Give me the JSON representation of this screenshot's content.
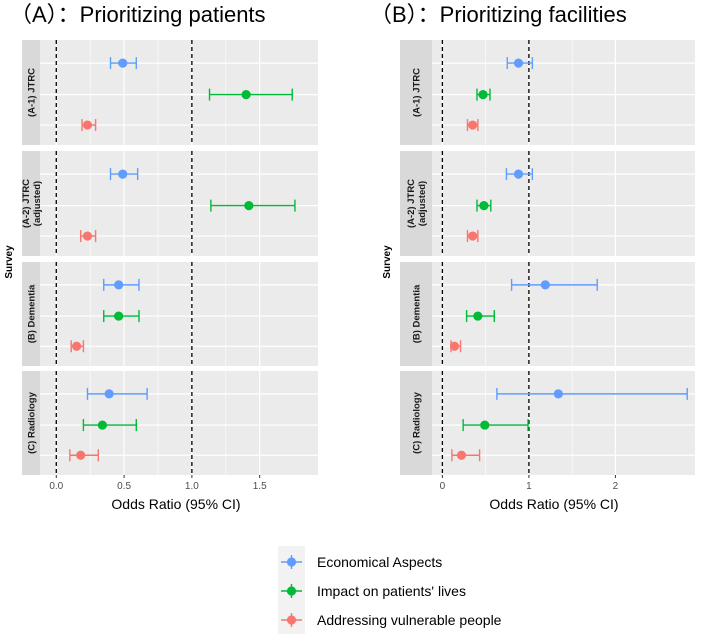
{
  "panels": [
    {
      "id": "A",
      "title": "（A）：Prioritizing patients"
    },
    {
      "id": "B",
      "title": "（B）：Prioritizing facilities"
    }
  ],
  "colors": {
    "economical": "#619CFF",
    "impact": "#00BA38",
    "vulnerable": "#F8766D",
    "panel_bg": "#EBEBEB",
    "strip_bg": "#D9D9D9",
    "grid": "#FFFFFF"
  },
  "legend": {
    "items": [
      {
        "key": "economical",
        "label": "Economical Aspects"
      },
      {
        "key": "impact",
        "label": "Impact on patients' lives"
      },
      {
        "key": "vulnerable",
        "label": "Addressing vulnerable people"
      }
    ]
  },
  "chart_data": [
    {
      "type": "scatter",
      "subtype": "forest-plot",
      "title": "（A）：Prioritizing patients",
      "xlabel": "Odds Ratio (95% CI)",
      "ylabel": "Survey",
      "xlim": [
        -0.12,
        1.93
      ],
      "xticks": [
        0.0,
        0.5,
        1.0,
        1.5
      ],
      "xtick_labels": [
        "0.0",
        "0.5",
        "1.0",
        "1.5"
      ],
      "reference_lines": [
        0,
        1
      ],
      "facets": [
        {
          "label": "(A-1) JTRC",
          "rows": [
            {
              "series": "economical",
              "or": 0.49,
              "lo": 0.4,
              "hi": 0.59
            },
            {
              "series": "impact",
              "or": 1.4,
              "lo": 1.13,
              "hi": 1.74
            },
            {
              "series": "vulnerable",
              "or": 0.23,
              "lo": 0.19,
              "hi": 0.29
            }
          ]
        },
        {
          "label": "(A-2) JTRC (adjusted)",
          "rows": [
            {
              "series": "economical",
              "or": 0.49,
              "lo": 0.4,
              "hi": 0.6
            },
            {
              "series": "impact",
              "or": 1.42,
              "lo": 1.14,
              "hi": 1.76
            },
            {
              "series": "vulnerable",
              "or": 0.23,
              "lo": 0.18,
              "hi": 0.29
            }
          ]
        },
        {
          "label": "(B) Dementia",
          "rows": [
            {
              "series": "economical",
              "or": 0.46,
              "lo": 0.35,
              "hi": 0.61
            },
            {
              "series": "impact",
              "or": 0.46,
              "lo": 0.35,
              "hi": 0.61
            },
            {
              "series": "vulnerable",
              "or": 0.15,
              "lo": 0.11,
              "hi": 0.2
            }
          ]
        },
        {
          "label": "(C) Radiology",
          "rows": [
            {
              "series": "economical",
              "or": 0.39,
              "lo": 0.23,
              "hi": 0.67
            },
            {
              "series": "impact",
              "or": 0.34,
              "lo": 0.2,
              "hi": 0.59
            },
            {
              "series": "vulnerable",
              "or": 0.18,
              "lo": 0.1,
              "hi": 0.31
            }
          ]
        }
      ]
    },
    {
      "type": "scatter",
      "subtype": "forest-plot",
      "title": "（B）：Prioritizing facilities",
      "xlabel": "Odds Ratio (95% CI)",
      "ylabel": "Survey",
      "xlim": [
        -0.12,
        2.92
      ],
      "xticks": [
        0,
        1,
        2
      ],
      "xtick_labels": [
        "0",
        "1",
        "2"
      ],
      "reference_lines": [
        0,
        1
      ],
      "facets": [
        {
          "label": "(A-1) JTRC",
          "rows": [
            {
              "series": "economical",
              "or": 0.88,
              "lo": 0.75,
              "hi": 1.04
            },
            {
              "series": "impact",
              "or": 0.47,
              "lo": 0.4,
              "hi": 0.55
            },
            {
              "series": "vulnerable",
              "or": 0.35,
              "lo": 0.29,
              "hi": 0.41
            }
          ]
        },
        {
          "label": "(A-2) JTRC (adjusted)",
          "rows": [
            {
              "series": "economical",
              "or": 0.88,
              "lo": 0.74,
              "hi": 1.04
            },
            {
              "series": "impact",
              "or": 0.48,
              "lo": 0.4,
              "hi": 0.56
            },
            {
              "series": "vulnerable",
              "or": 0.35,
              "lo": 0.29,
              "hi": 0.41
            }
          ]
        },
        {
          "label": "(B) Dementia",
          "rows": [
            {
              "series": "economical",
              "or": 1.19,
              "lo": 0.8,
              "hi": 1.79
            },
            {
              "series": "impact",
              "or": 0.41,
              "lo": 0.28,
              "hi": 0.6
            },
            {
              "series": "vulnerable",
              "or": 0.14,
              "lo": 0.1,
              "hi": 0.21
            }
          ]
        },
        {
          "label": "(C) Radiology",
          "rows": [
            {
              "series": "economical",
              "or": 1.34,
              "lo": 0.63,
              "hi": 2.83
            },
            {
              "series": "impact",
              "or": 0.49,
              "lo": 0.24,
              "hi": 0.99
            },
            {
              "series": "vulnerable",
              "or": 0.22,
              "lo": 0.11,
              "hi": 0.43
            }
          ]
        }
      ]
    }
  ]
}
